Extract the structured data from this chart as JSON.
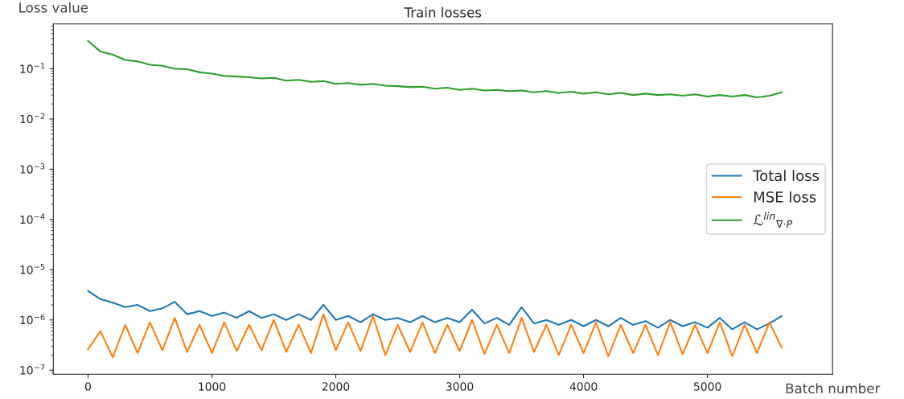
{
  "chart_data": {
    "type": "line",
    "title": "Train losses",
    "xlabel": "Batch number",
    "ylabel": "Loss value",
    "log": "y",
    "grid": false,
    "legend": "center right",
    "x": [
      0,
      100,
      200,
      300,
      400,
      500,
      600,
      700,
      800,
      900,
      1000,
      1100,
      1200,
      1300,
      1400,
      1500,
      1600,
      1700,
      1800,
      1900,
      2000,
      2100,
      2200,
      2300,
      2400,
      2500,
      2600,
      2700,
      2800,
      2900,
      3000,
      3100,
      3200,
      3300,
      3400,
      3500,
      3600,
      3700,
      3800,
      3900,
      4000,
      4100,
      4200,
      4300,
      4400,
      4500,
      4600,
      4700,
      4800,
      4900,
      5000,
      5100,
      5200,
      5300,
      5400,
      5500,
      5600
    ],
    "xlim": [
      -280,
      6010
    ],
    "xticks": [
      0,
      1000,
      2000,
      3000,
      4000,
      5000
    ],
    "ylim": [
      8.3e-08,
      0.78
    ],
    "yticks": [
      {
        "value": 1e-07,
        "label": "10$^{−7}$"
      },
      {
        "value": 1e-06,
        "label": "10$^{−6}$"
      },
      {
        "value": 1e-05,
        "label": "10$^{−5}$"
      },
      {
        "value": 0.0001,
        "label": "10$^{−4}$"
      },
      {
        "value": 0.001,
        "label": "10$^{−3}$"
      },
      {
        "value": 0.01,
        "label": "10$^{−2}$"
      },
      {
        "value": 0.1,
        "label": "10$^{−1}$"
      }
    ],
    "series": [
      {
        "name": "Total loss",
        "color": "#1f77b4",
        "values": [
          3.8e-06,
          2.6e-06,
          2.2e-06,
          1.8e-06,
          2e-06,
          1.5e-06,
          1.7e-06,
          2.3e-06,
          1.3e-06,
          1.5e-06,
          1.2e-06,
          1.4e-06,
          1.1e-06,
          1.5e-06,
          1.1e-06,
          1.3e-06,
          1e-06,
          1.3e-06,
          1e-06,
          2e-06,
          1e-06,
          1.2e-06,
          9e-07,
          1.3e-06,
          1e-06,
          1.1e-06,
          9e-07,
          1.2e-06,
          9e-07,
          1.1e-06,
          9e-07,
          1.6e-06,
          8.5e-07,
          1.1e-06,
          8e-07,
          1.8e-06,
          8.5e-07,
          1e-06,
          8e-07,
          1e-06,
          7.5e-07,
          1e-06,
          7.5e-07,
          1.1e-06,
          8e-07,
          9.5e-07,
          7e-07,
          1e-06,
          7.5e-07,
          9e-07,
          7e-07,
          1.1e-06,
          6.5e-07,
          9e-07,
          6.5e-07,
          8.5e-07,
          1.2e-06
        ]
      },
      {
        "name": "MSE loss",
        "color": "#ff7f0e",
        "values": [
          2.6e-07,
          6e-07,
          1.8e-07,
          8e-07,
          2.2e-07,
          9e-07,
          2.5e-07,
          1.1e-06,
          2.3e-07,
          8e-07,
          2.2e-07,
          9e-07,
          2.4e-07,
          8e-07,
          2.5e-07,
          1e-06,
          2.3e-07,
          8e-07,
          2.2e-07,
          1.3e-06,
          2.5e-07,
          9e-07,
          2.4e-07,
          1.2e-06,
          2e-07,
          8e-07,
          2.3e-07,
          9e-07,
          2.2e-07,
          8e-07,
          2.4e-07,
          1e-06,
          2.1e-07,
          8e-07,
          2.2e-07,
          1.1e-06,
          2.3e-07,
          8e-07,
          2e-07,
          8e-07,
          2.2e-07,
          9e-07,
          1.9e-07,
          8e-07,
          2.2e-07,
          8e-07,
          2e-07,
          9e-07,
          2.1e-07,
          8e-07,
          2.2e-07,
          9e-07,
          1.9e-07,
          8e-07,
          2.2e-07,
          9e-07,
          2.8e-07
        ]
      },
      {
        "name": "ℒ$^{lin}$$_{∇·P}$",
        "color": "#2ca02c",
        "values": [
          0.36,
          0.22,
          0.19,
          0.15,
          0.14,
          0.12,
          0.115,
          0.1,
          0.098,
          0.085,
          0.08,
          0.072,
          0.07,
          0.068,
          0.064,
          0.066,
          0.058,
          0.06,
          0.055,
          0.057,
          0.05,
          0.052,
          0.048,
          0.05,
          0.046,
          0.045,
          0.043,
          0.044,
          0.04,
          0.042,
          0.038,
          0.04,
          0.037,
          0.038,
          0.036,
          0.037,
          0.034,
          0.036,
          0.033,
          0.035,
          0.032,
          0.034,
          0.031,
          0.033,
          0.03,
          0.032,
          0.03,
          0.031,
          0.029,
          0.031,
          0.028,
          0.03,
          0.028,
          0.03,
          0.027,
          0.029,
          0.034
        ]
      }
    ]
  }
}
